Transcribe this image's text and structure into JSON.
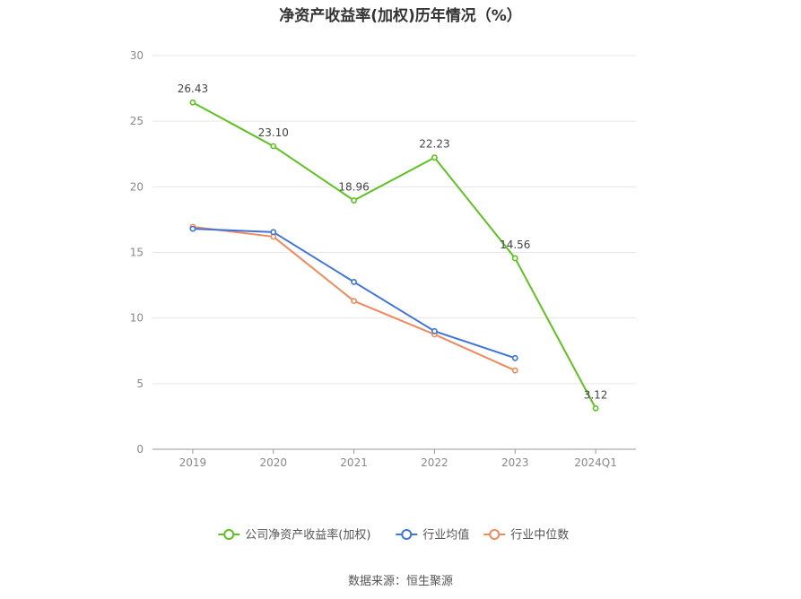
{
  "chart_data": {
    "type": "line",
    "title": "净资产收益率(加权)历年情况（%）",
    "categories": [
      "2019",
      "2020",
      "2021",
      "2022",
      "2023",
      "2024Q1"
    ],
    "ylim": [
      0,
      30
    ],
    "yticks": [
      0,
      5,
      10,
      15,
      20,
      25,
      30
    ],
    "grid": true,
    "legend_position": "bottom",
    "series": [
      {
        "name": "公司净资产收益率(加权)",
        "color": "#5cc31c",
        "values": [
          26.43,
          23.1,
          18.96,
          22.23,
          14.56,
          3.12
        ],
        "labels": [
          "26.43",
          "23.10",
          "18.96",
          "22.23",
          "14.56",
          "3.12"
        ]
      },
      {
        "name": "行业均值",
        "color": "#3d74e0",
        "values": [
          16.8,
          16.55,
          12.75,
          9.0,
          6.95,
          null
        ]
      },
      {
        "name": "行业中位数",
        "color": "#f2895a",
        "values": [
          16.95,
          16.2,
          11.3,
          8.75,
          6.0,
          null
        ]
      }
    ]
  },
  "source": "数据来源：恒生聚源"
}
